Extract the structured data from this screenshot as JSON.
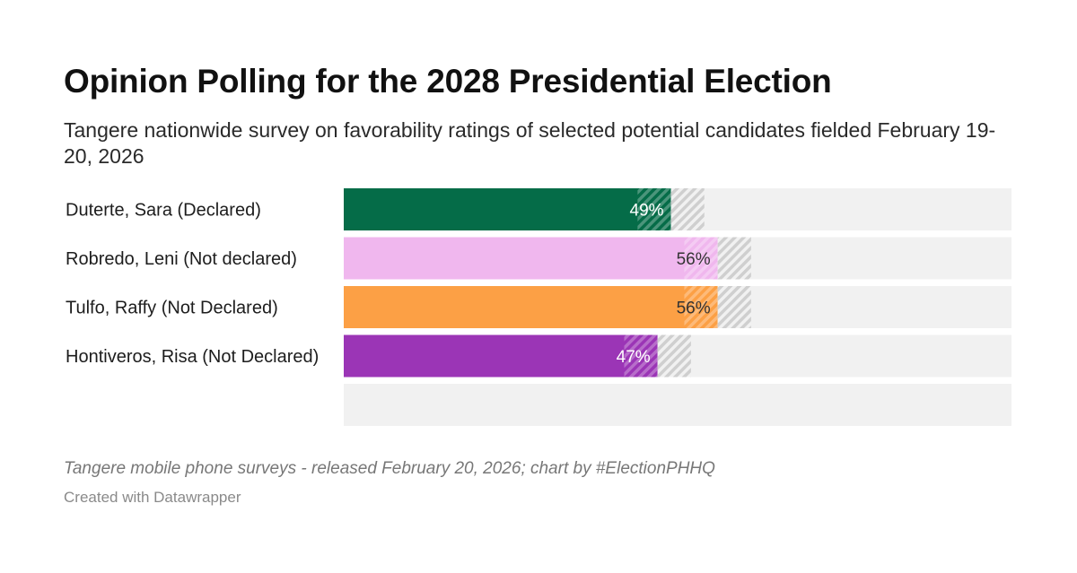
{
  "title": "Opinion Polling for the 2028 Presidential Election",
  "subtitle": "Tangere nationwide survey on favorability ratings of selected potential candidates fielded February 19-20, 2026",
  "notes": "Tangere mobile phone surveys - released February 20, 2026; chart by #ElectionPHHQ",
  "credit": "Created with Datawrapper",
  "chart_data": {
    "type": "bar",
    "orientation": "horizontal",
    "xlim": [
      0,
      100
    ],
    "categories": [
      "Duterte, Sara (Declared)",
      "Robredo, Leni (Not declared)",
      "Tulfo, Raffy (Not Declared)",
      "Hontiveros, Risa (Not Declared)",
      ""
    ],
    "values": [
      49,
      56,
      56,
      47,
      null
    ],
    "value_labels": [
      "49%",
      "56%",
      "56%",
      "47%",
      ""
    ],
    "error_margin": [
      5,
      5,
      5,
      5,
      null
    ],
    "colors": [
      "#056c48",
      "#f0b7ee",
      "#fca045",
      "#9b35b6",
      null
    ],
    "label_colors": [
      "#ffffff",
      "#333333",
      "#333333",
      "#ffffff",
      null
    ],
    "background_color": "#f1f1f1",
    "margin_hatch_color": "#cfcfcf"
  }
}
